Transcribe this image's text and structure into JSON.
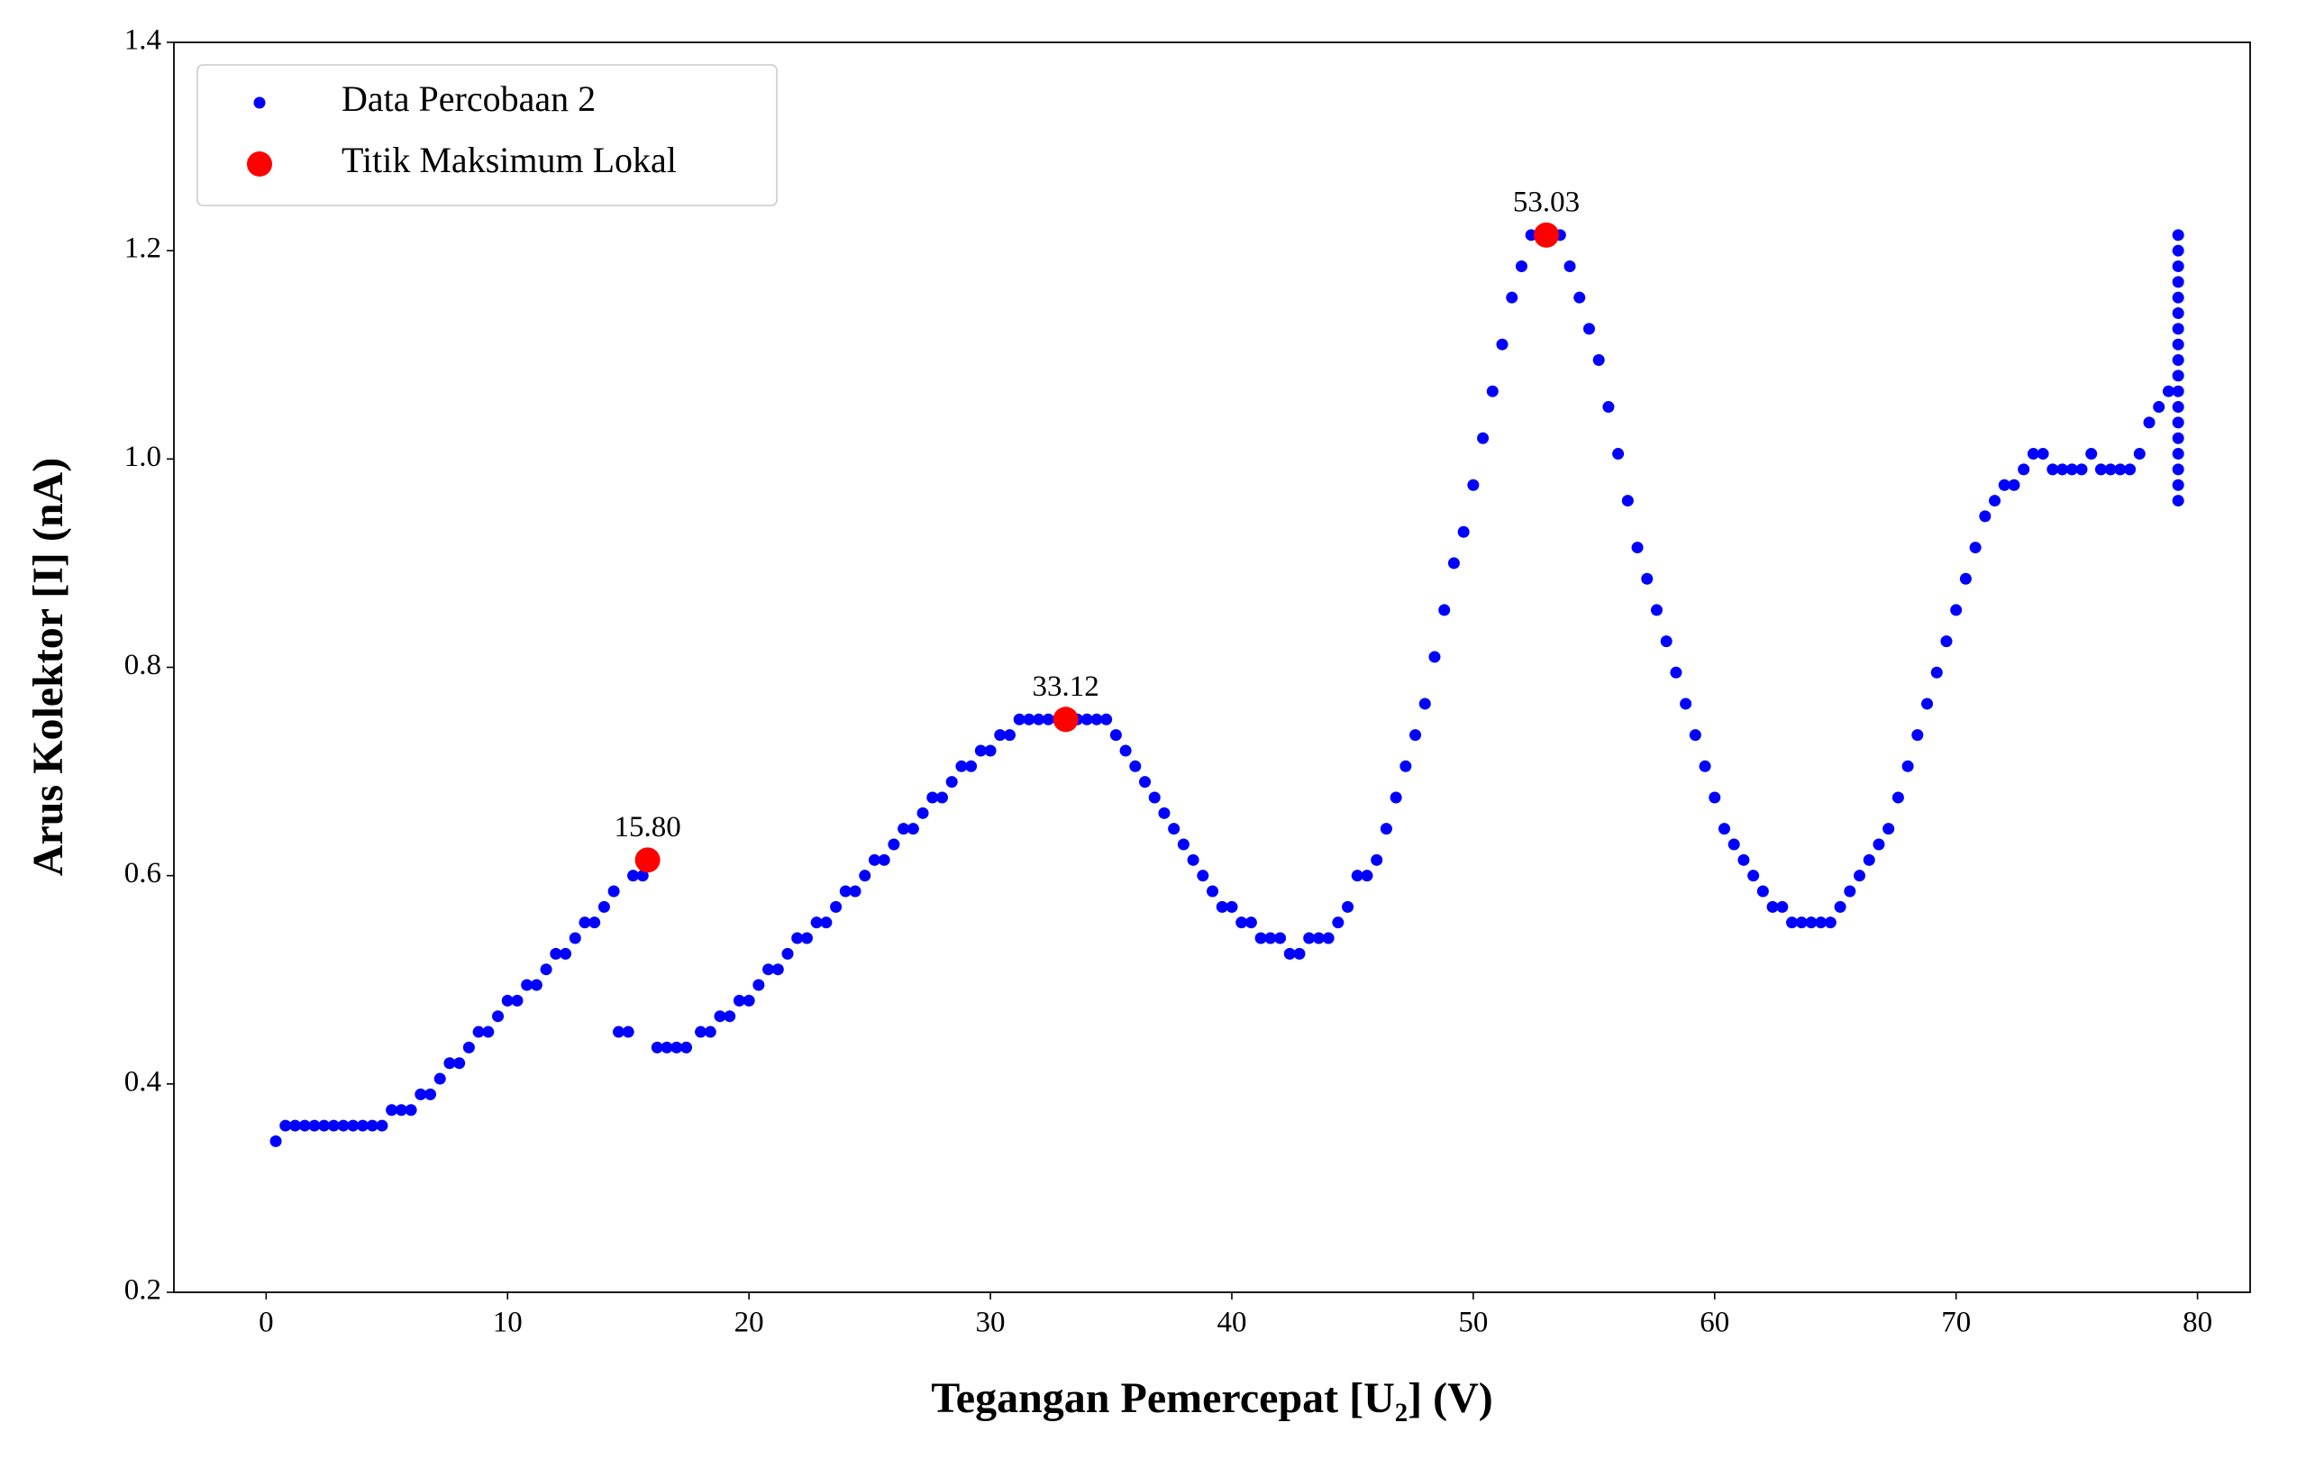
{
  "chart_data": {
    "type": "scatter",
    "xlabel": "Tegangan Pemercepat [U₂] (V)",
    "ylabel": "Arus Kolektor [I] (nA)",
    "xlim": [
      -3.82,
      82.18
    ],
    "ylim": [
      0.2,
      1.4
    ],
    "xticks": [
      0,
      10,
      20,
      30,
      40,
      50,
      60,
      70,
      80
    ],
    "yticks": [
      0.2,
      0.4,
      0.6,
      0.8,
      {
        "value": 1,
        "label": "1.0"
      },
      1.2,
      1.4
    ],
    "grid": false,
    "legend": "upper left",
    "series": [
      {
        "name": "Data Percobaan 2",
        "color": "#0000ff",
        "x": [
          0.4,
          0.8,
          1.2,
          1.6,
          2.0,
          2.4,
          2.8,
          3.2,
          3.6,
          4.0,
          4.4,
          4.8,
          5.2,
          5.6,
          6.0,
          6.4,
          6.8,
          7.2,
          7.6,
          8.0,
          8.4,
          8.8,
          9.2,
          9.6,
          10.0,
          10.4,
          10.8,
          11.2,
          11.6,
          12.0,
          12.4,
          12.8,
          13.2,
          13.6,
          14.0,
          14.4,
          14.6,
          15.0,
          15.2,
          15.6,
          16.2,
          16.6,
          17.0,
          17.4,
          18.0,
          18.4,
          18.8,
          19.2,
          19.6,
          20.0,
          20.4,
          20.8,
          21.2,
          21.6,
          22.0,
          22.4,
          22.8,
          23.2,
          23.6,
          24.0,
          24.4,
          24.8,
          25.2,
          25.6,
          26.0,
          26.4,
          26.8,
          27.2,
          27.6,
          28.0,
          28.4,
          28.8,
          29.2,
          29.6,
          30.0,
          30.4,
          30.8,
          31.2,
          31.6,
          32.0,
          32.4,
          32.8,
          33.2,
          33.6,
          34.0,
          34.4,
          34.8,
          35.2,
          35.6,
          36.0,
          36.4,
          36.8,
          37.2,
          37.6,
          38.0,
          38.4,
          38.8,
          39.2,
          39.6,
          40.0,
          40.4,
          40.8,
          41.2,
          41.6,
          42.0,
          42.4,
          42.8,
          43.2,
          43.6,
          44.0,
          44.4,
          44.8,
          45.2,
          45.6,
          46.0,
          46.4,
          46.8,
          47.2,
          47.6,
          48.0,
          48.4,
          48.8,
          49.2,
          49.6,
          50.0,
          50.4,
          50.8,
          51.2,
          51.6,
          52.0,
          52.4,
          52.8,
          53.2,
          53.6,
          54.0,
          54.4,
          54.8,
          55.2,
          55.6,
          56.0,
          56.4,
          56.8,
          57.2,
          57.6,
          58.0,
          58.4,
          58.8,
          59.2,
          59.6,
          60.0,
          60.4,
          60.8,
          61.2,
          61.6,
          62.0,
          62.4,
          62.8,
          63.2,
          63.6,
          64.0,
          64.4,
          64.8,
          65.2,
          65.6,
          66.0,
          66.4,
          66.8,
          67.2,
          67.6,
          68.0,
          68.4,
          68.8,
          69.2,
          69.6,
          70.0,
          70.4,
          70.8,
          71.2,
          71.6,
          72.0,
          72.4,
          72.8,
          73.2,
          73.6,
          74.0,
          74.4,
          74.8,
          75.2,
          75.6,
          76.0,
          76.4,
          76.8,
          77.2,
          77.6,
          78.0,
          78.4,
          78.8,
          79.2,
          79.2,
          79.2,
          79.2,
          79.2,
          79.2,
          79.2,
          79.2,
          79.2,
          79.2,
          79.2,
          79.2,
          79.2,
          79.2,
          79.2,
          79.2,
          79.2,
          79.2
        ],
        "values": [
          0.345,
          0.36,
          0.36,
          0.36,
          0.36,
          0.36,
          0.36,
          0.36,
          0.36,
          0.36,
          0.36,
          0.36,
          0.375,
          0.375,
          0.375,
          0.39,
          0.39,
          0.405,
          0.42,
          0.42,
          0.435,
          0.45,
          0.45,
          0.465,
          0.48,
          0.48,
          0.495,
          0.495,
          0.51,
          0.525,
          0.525,
          0.54,
          0.555,
          0.555,
          0.57,
          0.585,
          0.45,
          0.45,
          0.6,
          0.6,
          0.435,
          0.435,
          0.435,
          0.435,
          0.45,
          0.45,
          0.465,
          0.465,
          0.48,
          0.48,
          0.495,
          0.51,
          0.51,
          0.525,
          0.54,
          0.54,
          0.555,
          0.555,
          0.57,
          0.585,
          0.585,
          0.6,
          0.615,
          0.615,
          0.63,
          0.645,
          0.645,
          0.66,
          0.675,
          0.675,
          0.69,
          0.705,
          0.705,
          0.72,
          0.72,
          0.735,
          0.735,
          0.75,
          0.75,
          0.75,
          0.75,
          0.75,
          0.75,
          0.75,
          0.75,
          0.75,
          0.75,
          0.735,
          0.72,
          0.705,
          0.69,
          0.675,
          0.66,
          0.645,
          0.63,
          0.615,
          0.6,
          0.585,
          0.57,
          0.57,
          0.555,
          0.555,
          0.54,
          0.54,
          0.54,
          0.525,
          0.525,
          0.54,
          0.54,
          0.54,
          0.555,
          0.57,
          0.6,
          0.6,
          0.615,
          0.645,
          0.675,
          0.705,
          0.735,
          0.765,
          0.81,
          0.855,
          0.9,
          0.93,
          0.975,
          1.02,
          1.065,
          1.11,
          1.155,
          1.185,
          1.215,
          1.215,
          1.215,
          1.215,
          1.185,
          1.155,
          1.125,
          1.095,
          1.05,
          1.005,
          0.96,
          0.915,
          0.885,
          0.855,
          0.825,
          0.795,
          0.765,
          0.735,
          0.705,
          0.675,
          0.645,
          0.63,
          0.615,
          0.6,
          0.585,
          0.57,
          0.57,
          0.555,
          0.555,
          0.555,
          0.555,
          0.555,
          0.57,
          0.585,
          0.6,
          0.615,
          0.63,
          0.645,
          0.675,
          0.705,
          0.735,
          0.765,
          0.795,
          0.825,
          0.855,
          0.885,
          0.915,
          0.945,
          0.96,
          0.975,
          0.975,
          0.99,
          1.005,
          1.005,
          0.99,
          0.99,
          0.99,
          0.99,
          1.005,
          0.99,
          0.99,
          0.99,
          0.99,
          1.005,
          1.035,
          1.05,
          1.065,
          0.96,
          0.975,
          0.99,
          1.005,
          1.02,
          1.035,
          1.05,
          1.065,
          1.08,
          1.095,
          1.11,
          1.125,
          1.14,
          1.155,
          1.17,
          1.185,
          1.2,
          1.215
        ]
      },
      {
        "name": "Titik Maksimum Lokal",
        "color": "#ff0000",
        "x": [
          15.8,
          33.12,
          53.03
        ],
        "x_labels": [
          "15.80",
          "33.12",
          "53.03"
        ],
        "values": [
          0.615,
          0.75,
          1.215
        ]
      }
    ]
  }
}
